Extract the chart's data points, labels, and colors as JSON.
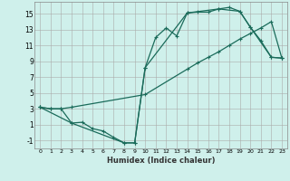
{
  "xlabel": "Humidex (Indice chaleur)",
  "bg_color": "#cff0eb",
  "line_color": "#1a6b5a",
  "xlim": [
    -0.5,
    23.5
  ],
  "ylim": [
    -2.0,
    16.5
  ],
  "xticks": [
    0,
    1,
    2,
    3,
    4,
    5,
    6,
    7,
    8,
    9,
    10,
    11,
    12,
    13,
    14,
    15,
    16,
    17,
    18,
    19,
    20,
    21,
    22,
    23
  ],
  "yticks": [
    -1,
    1,
    3,
    5,
    7,
    9,
    11,
    13,
    15
  ],
  "line1_x": [
    0,
    1,
    2,
    3,
    4,
    5,
    6,
    7,
    8,
    9,
    10,
    11,
    12,
    13,
    14,
    15,
    16,
    17,
    18,
    19,
    20,
    21,
    22,
    23
  ],
  "line1_y": [
    3.2,
    3.0,
    3.0,
    1.2,
    1.3,
    0.5,
    0.2,
    -0.6,
    -1.3,
    -1.3,
    8.2,
    12.0,
    13.2,
    12.2,
    15.1,
    15.2,
    15.2,
    15.6,
    15.8,
    15.3,
    13.3,
    11.6,
    9.5,
    9.4
  ],
  "line2_x": [
    0,
    1,
    2,
    3,
    10,
    14,
    15,
    16,
    17,
    18,
    19,
    20,
    21,
    22,
    23
  ],
  "line2_y": [
    3.2,
    3.0,
    3.0,
    3.2,
    4.8,
    8.0,
    8.8,
    9.5,
    10.2,
    11.0,
    11.8,
    12.5,
    13.2,
    14.0,
    9.4
  ],
  "line3_x": [
    0,
    3,
    8,
    9,
    10,
    14,
    17,
    19,
    20,
    22,
    23
  ],
  "line3_y": [
    3.2,
    1.2,
    -1.3,
    -1.3,
    8.2,
    15.1,
    15.6,
    15.3,
    13.3,
    9.5,
    9.4
  ]
}
